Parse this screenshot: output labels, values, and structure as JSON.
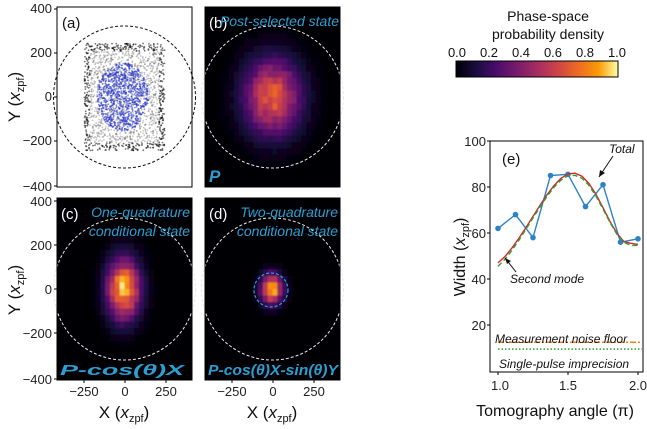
{
  "colorbar": {
    "title_line1": "Phase-space",
    "title_line2": "probability density",
    "ticks": [
      "0.0",
      "0.2",
      "0.4",
      "0.6",
      "0.8",
      "1.0"
    ],
    "colormap": "inferno"
  },
  "axes": {
    "y_label_main": "Y (",
    "y_label_sym": "x",
    "y_label_sub": "zpf",
    "y_label_close": ")",
    "x_label_main": "X (",
    "x_label_sym": "x",
    "x_label_sub": "zpf",
    "x_label_close": ")",
    "y_ticks": [
      "400",
      "200",
      "0",
      "−200",
      "−400"
    ],
    "y_ticks_c": [
      "400",
      "200",
      "0",
      "−200",
      "−400"
    ],
    "x_ticks": [
      "−250",
      "0",
      "250"
    ]
  },
  "panels": {
    "a": {
      "label": "(a)"
    },
    "b": {
      "label": "(b)",
      "title": "Post-selected state",
      "operator": "P"
    },
    "c": {
      "label": "(c)",
      "title_line1": "One-quadrature",
      "title_line2": "conditional state",
      "operator": "P-cos(θ)X"
    },
    "d": {
      "label": "(d)",
      "title_line1": "Two-quadrature",
      "title_line2": "conditional state",
      "operator": "P-cos(θ)X-sin(θ)Y"
    },
    "e": {
      "label": "(e)",
      "ylabel_main": "Width (",
      "ylabel_sym": "x",
      "ylabel_sub": "zpf",
      "ylabel_close": ")",
      "xlabel": "Tomography angle (π)",
      "annotation_total": "Total",
      "annotation_second": "Second mode",
      "annotation_noise": "Measurement noise floor",
      "annotation_imprecision": "Single-pulse imprecision",
      "y_ticks": [
        "100",
        "80",
        "60",
        "40",
        "20"
      ],
      "x_ticks": [
        "1.0",
        "1.5",
        "2.0"
      ]
    }
  },
  "colors": {
    "title_blue": "#2a9fd0",
    "data_blue": "#2b83c6",
    "total_red": "#d62728",
    "second_green": "#2ca02c",
    "noise_orange": "#ff7f0e"
  },
  "chart_data": {
    "type": "line",
    "title": "",
    "xlabel": "Tomography angle (π)",
    "ylabel": "Width (x_zpf)",
    "xlim": [
      1.0,
      2.05
    ],
    "ylim": [
      0,
      100
    ],
    "series": [
      {
        "name": "",
        "style": "markers+line",
        "color": "#2b83c6",
        "x": [
          1.0,
          1.125,
          1.25,
          1.375,
          1.5,
          1.625,
          1.75,
          1.875,
          2.0
        ],
        "y": [
          62,
          68,
          58,
          85,
          85.5,
          71.5,
          81,
          56,
          57.5
        ]
      },
      {
        "name": "Total",
        "color": "#d62728",
        "x": [
          1.0,
          1.05,
          1.1,
          1.15,
          1.2,
          1.25,
          1.3,
          1.35,
          1.4,
          1.45,
          1.5,
          1.55,
          1.6,
          1.65,
          1.7,
          1.75,
          1.8,
          1.85,
          1.9,
          1.95,
          2.0
        ],
        "y": [
          47,
          49.8,
          53.5,
          57.8,
          62.4,
          67.2,
          72,
          76.6,
          80.6,
          83.8,
          85.7,
          86,
          84.7,
          81.5,
          76.8,
          71,
          65,
          59.8,
          56.2,
          55.5,
          55
        ]
      },
      {
        "name": "Second mode",
        "color": "#2ca02c",
        "style": "dashed",
        "x": [
          1.0,
          1.05,
          1.1,
          1.15,
          1.2,
          1.25,
          1.3,
          1.35,
          1.4,
          1.45,
          1.5,
          1.55,
          1.6,
          1.65,
          1.7,
          1.75,
          1.8,
          1.85,
          1.9,
          1.95,
          2.0
        ],
        "y": [
          45.5,
          48.6,
          52.5,
          56.9,
          61.7,
          66.5,
          71.3,
          75.9,
          79.9,
          83,
          84.9,
          85.1,
          83.8,
          80.7,
          76.1,
          70.4,
          64.6,
          59.4,
          55.9,
          54.6,
          54.6
        ]
      },
      {
        "name": "Measurement noise floor",
        "color": "#ff7f0e",
        "style": "dash-dot",
        "x": [
          1.0,
          2.05
        ],
        "y": [
          12.5,
          12.5
        ]
      },
      {
        "name": "Single-pulse imprecision",
        "color": "#2ca02c",
        "style": "dotted",
        "x": [
          1.0,
          2.05
        ],
        "y": [
          9.5,
          9.5
        ]
      }
    ],
    "heatmaps": [
      {
        "panel": "b",
        "center": [
          0,
          0
        ],
        "sigma_x": 120,
        "sigma_y": 120
      },
      {
        "panel": "c",
        "center": [
          -5,
          0
        ],
        "sigma_x": 70,
        "sigma_y": 95
      },
      {
        "panel": "d",
        "center": [
          -5,
          0
        ],
        "sigma_x": 45,
        "sigma_y": 45
      }
    ],
    "circle_radius": 400,
    "panel_axis_range": [
      -420,
      420
    ]
  }
}
